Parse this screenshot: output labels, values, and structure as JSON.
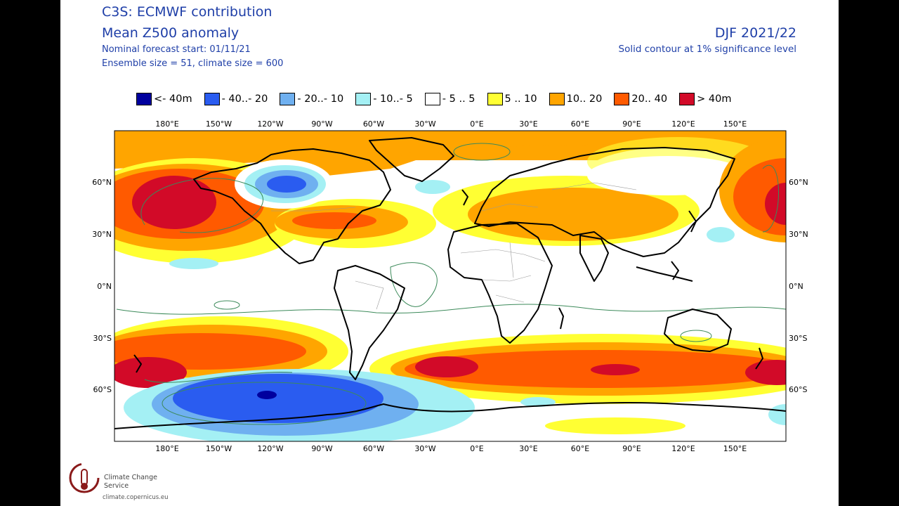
{
  "header": {
    "title_line1": "C3S: ECMWF contribution",
    "title_line2": "Mean Z500 anomaly",
    "forecast_start": "Nominal forecast start: 01/11/21",
    "ensemble_info": "Ensemble size = 51, climate size = 600",
    "season": "DJF 2021/22",
    "significance_note": "Solid contour at 1% significance level"
  },
  "legend": [
    {
      "label": "<- 40m",
      "color": "#00009e"
    },
    {
      "label": "- 40..- 20",
      "color": "#2a5cf0"
    },
    {
      "label": "- 20..- 10",
      "color": "#6fb0f0"
    },
    {
      "label": "- 10..- 5",
      "color": "#a4f0f4"
    },
    {
      "label": "- 5 .. 5",
      "color": "#ffffff"
    },
    {
      "label": "5 .. 10",
      "color": "#ffff33"
    },
    {
      "label": "10.. 20",
      "color": "#ffa500"
    },
    {
      "label": "20.. 40",
      "color": "#ff5a00"
    },
    {
      "label": ">  40m",
      "color": "#d20a28"
    }
  ],
  "axes": {
    "lon_labels": [
      "180°E",
      "150°W",
      "120°W",
      "90°W",
      "60°W",
      "30°W",
      "0°E",
      "30°E",
      "60°E",
      "90°E",
      "120°E",
      "150°E"
    ],
    "lat_labels": [
      "60°N",
      "30°N",
      "0°N",
      "30°S",
      "60°S"
    ]
  },
  "logo": {
    "name": "Climate Change Service",
    "url": "climate.copernicus.eu"
  }
}
